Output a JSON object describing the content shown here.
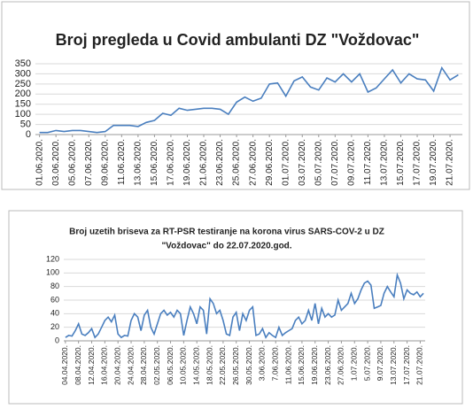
{
  "chart_data": [
    {
      "type": "line",
      "title": "Broj pregleda u Covid ambulanti DZ \"Voždovac\"",
      "categories": [
        "01.06.2020.",
        null,
        "03.06.2020.",
        null,
        "05.06.2020.",
        null,
        "07.06.2020.",
        null,
        "09.06.2020.",
        null,
        "11.06.2020.",
        null,
        "13.06.2020.",
        null,
        "15.06.2020.",
        null,
        "17.06.2020.",
        null,
        "19.06.2020.",
        null,
        "21.06.2020.",
        null,
        "23.06.2020.",
        null,
        "25.06.2020.",
        null,
        "27.06.2020.",
        null,
        "29.06.2020.",
        null,
        "01.07.2020.",
        null,
        "03.07.2020.",
        null,
        "05.07.2020.",
        null,
        "07.07.2020.",
        null,
        "09.07.2020.",
        null,
        "11.07.2020.",
        null,
        "13.07.2020.",
        null,
        "15.07.2020.",
        null,
        "17.07.2020.",
        null,
        "19.07.2020.",
        null,
        "21.07.2020.",
        null
      ],
      "values": [
        10,
        10,
        20,
        15,
        20,
        20,
        15,
        10,
        15,
        45,
        45,
        45,
        40,
        60,
        70,
        105,
        95,
        130,
        120,
        125,
        130,
        130,
        125,
        100,
        160,
        185,
        165,
        180,
        250,
        255,
        190,
        265,
        285,
        235,
        220,
        280,
        260,
        300,
        260,
        300,
        210,
        230,
        275,
        320,
        255,
        300,
        275,
        270,
        215,
        330,
        270,
        295
      ],
      "color": "#4a7fbf",
      "ylim": [
        0,
        350
      ],
      "yticks": [
        0,
        50,
        100,
        150,
        200,
        250,
        300,
        350
      ],
      "grid": true
    },
    {
      "type": "line",
      "title": [
        "Broj uzetih briseva za RT-PSR testiranje na korona virus SARS-COV-2 u DZ",
        "\"Voždovac\" do 22.07.2020.god."
      ],
      "categories": [
        "04.04.2020.",
        null,
        null,
        null,
        "08.04.2020.",
        null,
        null,
        null,
        "12.04.2020.",
        null,
        null,
        null,
        "16.04.2020.",
        null,
        null,
        null,
        "20.04.2020.",
        null,
        null,
        null,
        "24.04.2020.",
        null,
        null,
        null,
        "28.04.2020.",
        null,
        null,
        null,
        "02.05.2020.",
        null,
        null,
        null,
        "06.05.2020.",
        null,
        null,
        null,
        "10.05.2020.",
        null,
        null,
        null,
        "14.05.2020.",
        null,
        null,
        null,
        "18.05.2020.",
        null,
        null,
        null,
        "22.05.2020.",
        null,
        null,
        null,
        "26.05.2020.",
        null,
        null,
        null,
        "30.05.2020.",
        null,
        null,
        null,
        "3.06.2020.",
        null,
        null,
        null,
        "7.06.2020.",
        null,
        null,
        null,
        "11.06.2020.",
        null,
        null,
        null,
        "15.06.2020.",
        null,
        null,
        null,
        "19.06.2020.",
        null,
        null,
        null,
        "23.06.2020.",
        null,
        null,
        null,
        "27.06.2020.",
        null,
        null,
        null,
        "1.07.2020.",
        null,
        null,
        null,
        "5.07.2020.",
        null,
        null,
        null,
        "9.07.2020.",
        null,
        null,
        null,
        "13.07.2020.",
        null,
        null,
        null,
        "17.07.2020.",
        null,
        null,
        null,
        "21.07.2020.",
        null
      ],
      "values": [
        5,
        8,
        7,
        15,
        25,
        10,
        8,
        12,
        18,
        5,
        10,
        20,
        30,
        35,
        28,
        38,
        10,
        5,
        8,
        7,
        30,
        40,
        35,
        15,
        38,
        45,
        20,
        10,
        25,
        40,
        45,
        38,
        42,
        35,
        45,
        40,
        8,
        30,
        50,
        40,
        25,
        50,
        45,
        10,
        62,
        55,
        40,
        45,
        30,
        10,
        8,
        35,
        42,
        15,
        40,
        30,
        45,
        50,
        8,
        10,
        18,
        5,
        12,
        8,
        5,
        20,
        8,
        12,
        15,
        18,
        30,
        35,
        25,
        30,
        45,
        30,
        55,
        25,
        48,
        35,
        40,
        35,
        38,
        60,
        45,
        50,
        55,
        70,
        55,
        62,
        75,
        85,
        88,
        82,
        48,
        50,
        52,
        70,
        80,
        72,
        65,
        97,
        85,
        62,
        75,
        70,
        68,
        72,
        65,
        70
      ],
      "color": "#4a7fbf",
      "ylim": [
        0,
        120
      ],
      "yticks": [
        0,
        20,
        40,
        60,
        80,
        100,
        120
      ],
      "grid": true
    }
  ]
}
